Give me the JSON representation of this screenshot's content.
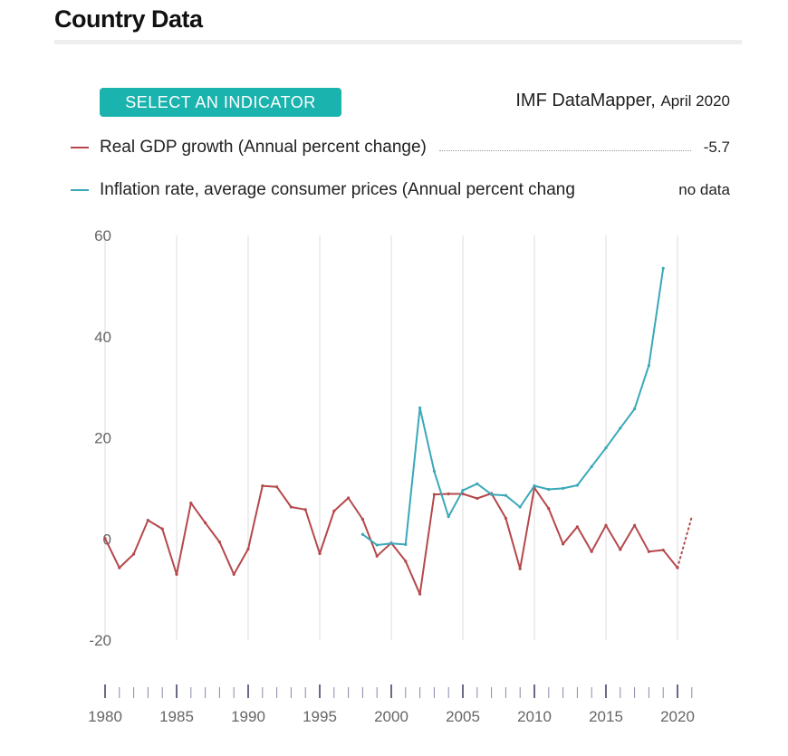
{
  "page": {
    "title": "Country Data"
  },
  "controls": {
    "select_indicator_label": "SELECT AN INDICATOR"
  },
  "source": {
    "name": "IMF DataMapper,",
    "date": "April 2020"
  },
  "legend": [
    {
      "label": "Real GDP growth (Annual percent change)",
      "value": "-5.7",
      "color": "#b5484b"
    },
    {
      "label": "Inflation rate, average consumer prices (Annual percent chang",
      "value": "no data",
      "color": "#3aa8b9"
    }
  ],
  "chart_data": {
    "type": "line",
    "xlim": [
      1980,
      2021
    ],
    "ylim": [
      -20,
      60
    ],
    "yticks": [
      60,
      40,
      20,
      0,
      -20
    ],
    "xticks": [
      1980,
      1985,
      1990,
      1995,
      2000,
      2005,
      2010,
      2015,
      2020
    ],
    "x_minor_ticks": [
      1980,
      1981,
      1982,
      1983,
      1984,
      1985,
      1986,
      1987,
      1988,
      1989,
      1990,
      1991,
      1992,
      1993,
      1994,
      1995,
      1996,
      1997,
      1998,
      1999,
      2000,
      2001,
      2002,
      2003,
      2004,
      2005,
      2006,
      2007,
      2008,
      2009,
      2010,
      2011,
      2012,
      2013,
      2014,
      2015,
      2016,
      2017,
      2018,
      2019,
      2020,
      2021
    ],
    "grid": "vertical",
    "series": [
      {
        "name": "Real GDP growth (Annual percent change)",
        "color": "#b5484b",
        "x": [
          1980,
          1981,
          1982,
          1983,
          1984,
          1985,
          1986,
          1987,
          1988,
          1989,
          1990,
          1991,
          1992,
          1993,
          1994,
          1995,
          1996,
          1997,
          1998,
          1999,
          2000,
          2001,
          2002,
          2003,
          2004,
          2005,
          2006,
          2007,
          2008,
          2009,
          2010,
          2011,
          2012,
          2013,
          2014,
          2015,
          2016,
          2017,
          2018,
          2019,
          2020
        ],
        "values": [
          0.1,
          -5.7,
          -3.0,
          3.7,
          2.0,
          -7.0,
          7.1,
          3.2,
          -0.6,
          -7.0,
          -2.0,
          10.5,
          10.3,
          6.3,
          5.8,
          -2.9,
          5.5,
          8.1,
          3.9,
          -3.4,
          -0.8,
          -4.4,
          -10.9,
          8.8,
          8.9,
          8.9,
          8.0,
          9.0,
          4.1,
          -5.9,
          10.1,
          6.0,
          -1.0,
          2.4,
          -2.5,
          2.7,
          -2.1,
          2.7,
          -2.5,
          -2.2,
          -5.7
        ],
        "projection": {
          "x": [
            2020,
            2021
          ],
          "values": [
            -5.7,
            4.4
          ],
          "style": "dotted"
        }
      },
      {
        "name": "Inflation rate, average consumer prices (Annual percent change)",
        "color": "#3aa8b9",
        "x": [
          1998,
          1999,
          2000,
          2001,
          2002,
          2003,
          2004,
          2005,
          2006,
          2007,
          2008,
          2009,
          2010,
          2011,
          2012,
          2013,
          2014,
          2015,
          2016,
          2017,
          2018,
          2019
        ],
        "values": [
          0.9,
          -1.2,
          -0.9,
          -1.1,
          25.9,
          13.4,
          4.4,
          9.6,
          10.9,
          8.8,
          8.6,
          6.3,
          10.5,
          9.8,
          10.0,
          10.6,
          14.3,
          18.0,
          21.9,
          25.7,
          34.3,
          53.5
        ]
      }
    ]
  }
}
